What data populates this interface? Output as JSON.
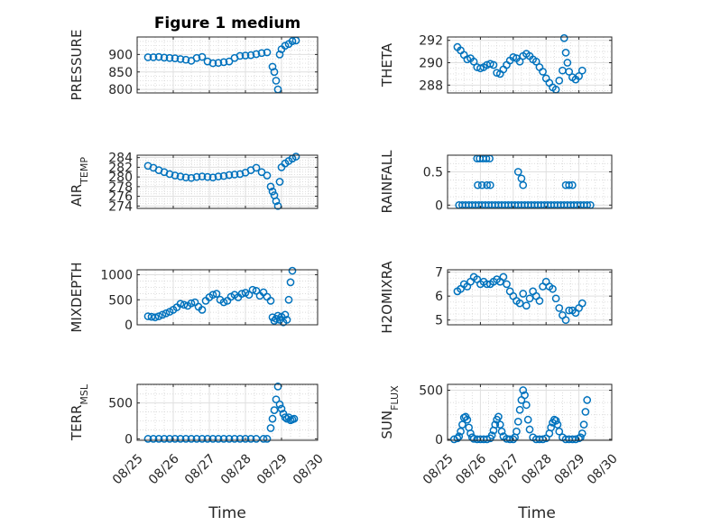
{
  "figure": {
    "title": "Figure 1 medium",
    "xlabel": "Time",
    "xticks": [
      "08/25",
      "08/26",
      "08/27",
      "08/28",
      "08/29",
      "08/30"
    ],
    "marker_color": "#0072bd"
  },
  "chart_data": [
    {
      "type": "scatter",
      "ylabel": "PRESSURE",
      "xlim": [
        25,
        30
      ],
      "ylim": [
        790,
        950
      ],
      "yticks": [
        800,
        850,
        900
      ],
      "yticklabels": [
        "800",
        "850",
        "900"
      ],
      "x": [
        25.3,
        25.45,
        25.6,
        25.75,
        25.9,
        26.05,
        26.2,
        26.35,
        26.5,
        26.65,
        26.8,
        26.95,
        27.1,
        27.25,
        27.4,
        27.55,
        27.7,
        27.85,
        28.0,
        28.15,
        28.3,
        28.45,
        28.6,
        28.75,
        28.8,
        28.85,
        28.9,
        28.95,
        29.0,
        29.1,
        29.2,
        29.3,
        29.4
      ],
      "y": [
        892,
        892,
        893,
        891,
        890,
        889,
        887,
        885,
        882,
        890,
        893,
        880,
        875,
        876,
        878,
        880,
        890,
        896,
        897,
        898,
        901,
        904,
        906,
        865,
        850,
        825,
        800,
        900,
        915,
        925,
        930,
        938,
        940
      ]
    },
    {
      "type": "scatter",
      "ylabel": "THETA",
      "xlim": [
        25,
        30
      ],
      "ylim": [
        287.3,
        292.3
      ],
      "yticks": [
        288,
        290,
        292
      ],
      "yticklabels": [
        "288",
        "290",
        "292"
      ],
      "x": [
        25.3,
        25.4,
        25.5,
        25.6,
        25.7,
        25.8,
        25.9,
        26.0,
        26.1,
        26.2,
        26.3,
        26.4,
        26.5,
        26.6,
        26.7,
        26.8,
        26.9,
        27.0,
        27.1,
        27.2,
        27.3,
        27.4,
        27.5,
        27.6,
        27.7,
        27.8,
        27.9,
        28.0,
        28.1,
        28.2,
        28.3,
        28.4,
        28.5,
        28.55,
        28.6,
        28.65,
        28.7,
        28.8,
        28.9,
        29.0,
        29.1
      ],
      "y": [
        291.4,
        291.1,
        290.7,
        290.3,
        290.4,
        290.1,
        289.6,
        289.5,
        289.6,
        289.8,
        289.9,
        289.8,
        289.1,
        289.0,
        289.4,
        289.8,
        290.2,
        290.5,
        290.4,
        290.1,
        290.6,
        290.8,
        290.6,
        290.3,
        290.1,
        289.6,
        289.2,
        288.6,
        288.2,
        287.8,
        287.6,
        288.4,
        289.3,
        292.2,
        290.9,
        290.0,
        289.2,
        288.7,
        288.5,
        288.8,
        289.3
      ]
    },
    {
      "type": "scatter",
      "ylabel": "AIR_TEMP",
      "xlim": [
        25,
        30
      ],
      "ylim": [
        273.5,
        284.5
      ],
      "yticks": [
        274,
        276,
        278,
        280,
        282,
        284
      ],
      "yticklabels": [
        "274",
        "276",
        "278",
        "280",
        "282",
        "284"
      ],
      "x": [
        25.3,
        25.45,
        25.6,
        25.75,
        25.9,
        26.05,
        26.2,
        26.35,
        26.5,
        26.65,
        26.8,
        26.95,
        27.1,
        27.25,
        27.4,
        27.55,
        27.7,
        27.85,
        28.0,
        28.15,
        28.3,
        28.45,
        28.6,
        28.7,
        28.75,
        28.8,
        28.85,
        28.9,
        28.95,
        29.0,
        29.1,
        29.2,
        29.3,
        29.4
      ],
      "y": [
        282.3,
        281.9,
        281.4,
        281.0,
        280.6,
        280.3,
        280.1,
        279.9,
        279.8,
        280.0,
        280.1,
        280.0,
        279.9,
        280.1,
        280.2,
        280.4,
        280.5,
        280.6,
        280.9,
        281.4,
        281.9,
        281.0,
        280.3,
        278.0,
        277.0,
        276.2,
        275.0,
        274.0,
        279.0,
        282.0,
        282.8,
        283.3,
        283.8,
        284.2
      ]
    },
    {
      "type": "scatter",
      "ylabel": "RAINFALL",
      "xlim": [
        25,
        30
      ],
      "ylim": [
        -0.05,
        0.75
      ],
      "yticks": [
        0,
        0.5
      ],
      "yticklabels": [
        "0",
        "0.5"
      ],
      "x": [
        25.35,
        25.45,
        25.55,
        25.65,
        25.75,
        25.85,
        25.95,
        26.05,
        26.15,
        26.25,
        26.35,
        26.45,
        26.55,
        26.65,
        26.75,
        26.85,
        26.95,
        27.05,
        27.15,
        27.25,
        27.35,
        27.45,
        27.55,
        27.65,
        27.75,
        27.85,
        27.95,
        28.05,
        28.15,
        28.25,
        28.35,
        28.45,
        28.55,
        28.65,
        28.75,
        28.85,
        28.95,
        29.05,
        29.15,
        29.25,
        29.35,
        25.9,
        25.98,
        26.08,
        26.18,
        26.28,
        25.92,
        26.05,
        26.2,
        26.3,
        27.15,
        27.25,
        27.3,
        28.6,
        28.7,
        28.8
      ],
      "y": [
        0,
        0,
        0,
        0,
        0,
        0,
        0,
        0,
        0,
        0,
        0,
        0,
        0,
        0,
        0,
        0,
        0,
        0,
        0,
        0,
        0,
        0,
        0,
        0,
        0,
        0,
        0,
        0,
        0,
        0,
        0,
        0,
        0,
        0,
        0,
        0,
        0,
        0,
        0,
        0,
        0,
        0.7,
        0.7,
        0.7,
        0.7,
        0.7,
        0.3,
        0.3,
        0.3,
        0.3,
        0.5,
        0.4,
        0.3,
        0.3,
        0.3,
        0.3
      ]
    },
    {
      "type": "scatter",
      "ylabel": "MIXDEPTH",
      "xlim": [
        25,
        30
      ],
      "ylim": [
        0,
        1100
      ],
      "yticks": [
        0,
        500,
        1000
      ],
      "yticklabels": [
        "0",
        "500",
        "1000"
      ],
      "x": [
        25.3,
        25.4,
        25.5,
        25.6,
        25.7,
        25.8,
        25.9,
        26.0,
        26.1,
        26.2,
        26.3,
        26.4,
        26.5,
        26.6,
        26.7,
        26.8,
        26.9,
        27.0,
        27.1,
        27.2,
        27.3,
        27.4,
        27.5,
        27.6,
        27.7,
        27.8,
        27.9,
        28.0,
        28.1,
        28.2,
        28.3,
        28.4,
        28.5,
        28.6,
        28.7,
        28.75,
        28.8,
        28.85,
        28.9,
        28.95,
        29.0,
        29.05,
        29.1,
        29.15,
        29.2,
        29.25,
        29.3
      ],
      "y": [
        170,
        160,
        150,
        170,
        200,
        230,
        260,
        300,
        350,
        420,
        400,
        380,
        430,
        450,
        360,
        300,
        480,
        550,
        600,
        620,
        500,
        450,
        480,
        560,
        600,
        550,
        620,
        640,
        600,
        700,
        680,
        580,
        650,
        560,
        480,
        150,
        80,
        120,
        180,
        100,
        160,
        50,
        200,
        100,
        500,
        850,
        1080
      ]
    },
    {
      "type": "scatter",
      "ylabel": "H2OMIXRA",
      "xlim": [
        25,
        30
      ],
      "ylim": [
        4.8,
        7.1
      ],
      "yticks": [
        5,
        6,
        7
      ],
      "yticklabels": [
        "5",
        "6",
        "7"
      ],
      "x": [
        25.3,
        25.4,
        25.5,
        25.6,
        25.7,
        25.8,
        25.9,
        26.0,
        26.1,
        26.2,
        26.3,
        26.4,
        26.5,
        26.6,
        26.7,
        26.8,
        26.9,
        27.0,
        27.1,
        27.2,
        27.3,
        27.4,
        27.5,
        27.6,
        27.7,
        27.8,
        27.9,
        28.0,
        28.1,
        28.2,
        28.3,
        28.4,
        28.5,
        28.6,
        28.7,
        28.8,
        28.9,
        29.0,
        29.1
      ],
      "y": [
        6.2,
        6.3,
        6.5,
        6.4,
        6.6,
        6.8,
        6.7,
        6.5,
        6.6,
        6.5,
        6.5,
        6.6,
        6.7,
        6.6,
        6.8,
        6.5,
        6.2,
        6.0,
        5.8,
        5.7,
        6.1,
        5.6,
        5.9,
        6.2,
        6.0,
        5.8,
        6.4,
        6.6,
        6.4,
        6.3,
        5.9,
        5.5,
        5.2,
        5.0,
        5.4,
        5.4,
        5.3,
        5.5,
        5.7
      ]
    },
    {
      "type": "scatter",
      "ylabel": "TERR_MSL",
      "xlim": [
        25,
        30
      ],
      "ylim": [
        -20,
        760
      ],
      "yticks": [
        0,
        500
      ],
      "yticklabels": [
        "0",
        "500"
      ],
      "x": [
        25.3,
        25.45,
        25.6,
        25.75,
        25.9,
        26.05,
        26.2,
        26.35,
        26.5,
        26.65,
        26.8,
        26.95,
        27.1,
        27.25,
        27.4,
        27.55,
        27.7,
        27.85,
        28.0,
        28.15,
        28.3,
        28.5,
        28.6,
        28.7,
        28.75,
        28.8,
        28.85,
        28.9,
        28.95,
        29.0,
        29.05,
        29.1,
        29.15,
        29.2,
        29.25,
        29.3,
        29.35
      ],
      "y": [
        0,
        0,
        0,
        0,
        0,
        0,
        0,
        0,
        0,
        0,
        0,
        0,
        0,
        0,
        0,
        0,
        0,
        0,
        0,
        0,
        0,
        0,
        0,
        150,
        280,
        400,
        550,
        730,
        480,
        420,
        350,
        300,
        280,
        300,
        260,
        270,
        280
      ]
    },
    {
      "type": "scatter",
      "ylabel": "SUN_FLUX",
      "xlim": [
        25,
        30
      ],
      "ylim": [
        -10,
        560
      ],
      "yticks": [
        0,
        500
      ],
      "yticklabels": [
        "0",
        "500"
      ],
      "x": [
        25.2,
        25.3,
        25.35,
        25.4,
        25.45,
        25.5,
        25.55,
        25.6,
        25.65,
        25.7,
        25.75,
        25.8,
        25.9,
        26.0,
        26.1,
        26.2,
        26.3,
        26.35,
        26.4,
        26.45,
        26.5,
        26.55,
        26.6,
        26.65,
        26.7,
        26.8,
        26.9,
        27.0,
        27.05,
        27.1,
        27.15,
        27.2,
        27.25,
        27.3,
        27.35,
        27.4,
        27.45,
        27.5,
        27.6,
        27.7,
        27.8,
        27.9,
        28.0,
        28.1,
        28.15,
        28.2,
        28.25,
        28.3,
        28.35,
        28.4,
        28.5,
        28.6,
        28.7,
        28.8,
        28.9,
        29.0,
        29.05,
        29.1,
        29.15,
        29.2,
        29.25
      ],
      "y": [
        0,
        10,
        30,
        80,
        150,
        220,
        230,
        200,
        120,
        60,
        20,
        5,
        0,
        0,
        0,
        0,
        10,
        40,
        90,
        150,
        200,
        230,
        150,
        80,
        30,
        5,
        0,
        0,
        20,
        80,
        180,
        300,
        400,
        500,
        450,
        350,
        200,
        100,
        20,
        0,
        0,
        0,
        10,
        60,
        120,
        170,
        200,
        190,
        150,
        80,
        20,
        0,
        0,
        0,
        0,
        10,
        20,
        60,
        150,
        280,
        400
      ]
    }
  ]
}
